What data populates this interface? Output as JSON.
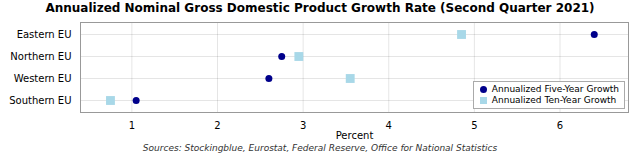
{
  "chart_data": {
    "type": "dot",
    "title": "Annualized Nominal Gross Domestic Product Growth Rate (Second Quarter 2021)",
    "xlabel": "Percent",
    "source": "Sources: Stockingblue, Eurostat, Federal Reserve, Office for National Statistics",
    "categories": [
      "Eastern EU",
      "Northern EU",
      "Western EU",
      "Southern EU"
    ],
    "series": [
      {
        "name": "Annualized Five-Year Growth",
        "color": "#00008B",
        "marker": "circle",
        "values": [
          6.4,
          2.75,
          2.6,
          1.05
        ]
      },
      {
        "name": "Annualized Ten-Year Growth",
        "color": "#A8D8E8",
        "marker": "square",
        "values": [
          4.85,
          2.95,
          3.55,
          0.75
        ]
      }
    ],
    "xlim": [
      0.4,
      6.8
    ],
    "xticks": [
      1,
      2,
      3,
      4,
      5,
      6
    ],
    "grid": true,
    "legend": "lower right"
  }
}
